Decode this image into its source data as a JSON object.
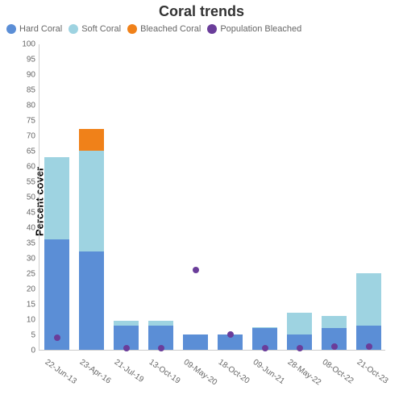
{
  "chart": {
    "type": "stacked-bar-scatter",
    "title": "Coral trends",
    "title_fontsize": 18,
    "title_color": "#333333",
    "ylabel": "Percent cover",
    "label_fontsize": 13,
    "label_color": "#333333",
    "background_color": "#ffffff",
    "axis_color": "#cccccc",
    "tick_color": "#666666",
    "tick_fontsize": 10,
    "ylim": [
      0,
      100
    ],
    "ytick_step": 5,
    "bar_width_ratio": 0.7,
    "series": [
      {
        "name": "Hard Coral",
        "type": "bar",
        "color": "#5b8ed6"
      },
      {
        "name": "Soft Coral",
        "type": "bar",
        "color": "#9ed3e1"
      },
      {
        "name": "Bleached Coral",
        "type": "bar",
        "color": "#f08119"
      },
      {
        "name": "Population Bleached",
        "type": "scatter",
        "color": "#6a3d9a"
      }
    ],
    "categories": [
      "22-Jun-13",
      "23-Apr-16",
      "21-Jul-19",
      "13-Oct-19",
      "09-May-20",
      "18-Oct-20",
      "09-Jun-21",
      "28-May-22",
      "08-Oct-22",
      "21-Oct-23"
    ],
    "data": {
      "Hard Coral": [
        36,
        32,
        8,
        8,
        5,
        5,
        7,
        5,
        7,
        8
      ],
      "Soft Coral": [
        27,
        33,
        1.5,
        1.5,
        0,
        0,
        0.5,
        7,
        4,
        17
      ],
      "Bleached Coral": [
        0,
        7,
        0,
        0,
        0,
        0,
        0,
        0,
        0,
        0
      ],
      "Population Bleached": [
        4,
        null,
        0.5,
        0.5,
        26,
        5,
        0.5,
        0.5,
        1,
        1
      ]
    }
  }
}
